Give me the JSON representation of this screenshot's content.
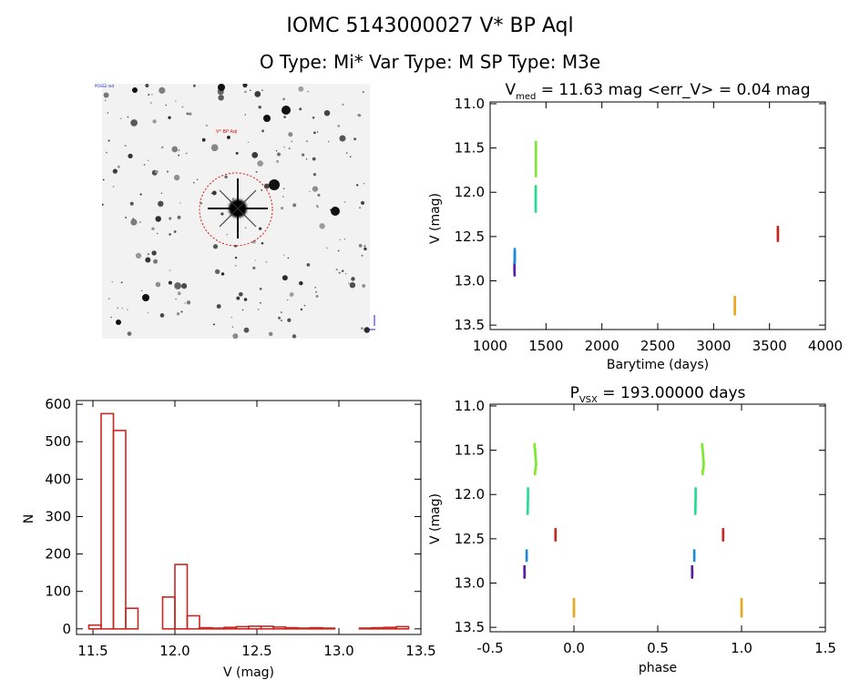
{
  "header": {
    "title": "IOMC 5143000027    V* BP Aql",
    "subtitle": "O Type: Mi*  Var Type: M   SP Type: M3e"
  },
  "image_panel": {
    "star_label": "V* BP Aql",
    "corner_labels": [
      "POSS2 red",
      "N",
      "E"
    ]
  },
  "colors": {
    "purple": "#5a1ea0",
    "blue": "#1c8ad8",
    "teal": "#22dc8c",
    "green": "#7ce82a",
    "orange": "#e8a820",
    "red": "#c82820"
  },
  "chart_data": [
    {
      "id": "lightcurve",
      "type": "scatter",
      "title": "V_med = 11.63 mag <err_V> = 0.04 mag",
      "title_parts": {
        "main": "V",
        "sub": "med",
        "rest": " = 11.63 mag <err_V> = 0.04 mag"
      },
      "xlabel": "Barytime (days)",
      "ylabel": "V (mag)",
      "xlim": [
        1000,
        4000
      ],
      "ylim": [
        13.55,
        10.98
      ],
      "y_inverted": true,
      "xticks": [
        1000,
        1500,
        2000,
        2500,
        3000,
        3500,
        4000
      ],
      "yticks": [
        11.0,
        11.5,
        12.0,
        12.5,
        13.0,
        13.5
      ],
      "series": [
        {
          "color_key": "purple",
          "points": [
            [
              1218,
              12.8
            ],
            [
              1218,
              12.83
            ],
            [
              1218,
              12.86
            ],
            [
              1218,
              12.89
            ],
            [
              1219,
              12.92
            ]
          ]
        },
        {
          "color_key": "blue",
          "points": [
            [
              1220,
              12.66
            ],
            [
              1220,
              12.69
            ],
            [
              1220,
              12.72
            ],
            [
              1221,
              12.75
            ],
            [
              1220,
              12.78
            ]
          ]
        },
        {
          "color_key": "teal",
          "points": [
            [
              1408,
              11.95
            ],
            [
              1408,
              12.0
            ],
            [
              1408,
              12.05
            ],
            [
              1408,
              12.1
            ],
            [
              1408,
              12.15
            ],
            [
              1408,
              12.2
            ]
          ]
        },
        {
          "color_key": "green",
          "points": [
            [
              1410,
              11.45
            ],
            [
              1410,
              11.5
            ],
            [
              1410,
              11.55
            ],
            [
              1410,
              11.6
            ],
            [
              1410,
              11.65
            ],
            [
              1410,
              11.7
            ],
            [
              1410,
              11.75
            ],
            [
              1410,
              11.8
            ]
          ]
        },
        {
          "color_key": "orange",
          "points": [
            [
              3190,
              13.2
            ],
            [
              3190,
              13.24
            ],
            [
              3190,
              13.28
            ],
            [
              3190,
              13.32
            ],
            [
              3190,
              13.36
            ]
          ]
        },
        {
          "color_key": "red",
          "points": [
            [
              3575,
              12.41
            ],
            [
              3575,
              12.44
            ],
            [
              3575,
              12.47
            ],
            [
              3575,
              12.5
            ],
            [
              3575,
              12.53
            ]
          ]
        }
      ]
    },
    {
      "id": "histogram",
      "type": "bar",
      "xlabel": "V (mag)",
      "ylabel": "N",
      "xlim": [
        11.4,
        13.5
      ],
      "ylim": [
        -15,
        610
      ],
      "xticks": [
        11.5,
        12.0,
        12.5,
        13.0,
        13.5
      ],
      "yticks": [
        0,
        100,
        200,
        300,
        400,
        500,
        600
      ],
      "bin_width": 0.075,
      "bin_left_edges": [
        11.475,
        11.55,
        11.625,
        11.7,
        11.775,
        11.85,
        11.925,
        12.0,
        12.075,
        12.15,
        12.225,
        12.3,
        12.375,
        12.45,
        12.525,
        12.6,
        12.675,
        12.75,
        12.825,
        12.9,
        12.975,
        13.05,
        13.125,
        13.2,
        13.275,
        13.35
      ],
      "values": [
        10,
        575,
        530,
        55,
        0,
        0,
        85,
        172,
        35,
        3,
        2,
        4,
        6,
        7,
        7,
        5,
        3,
        2,
        3,
        2,
        0,
        0,
        2,
        3,
        4,
        6
      ]
    },
    {
      "id": "phased",
      "type": "scatter",
      "title": "P_vsx = 193.00000 days",
      "title_parts": {
        "main": "P",
        "sub": "VSX",
        "rest": " = 193.00000 days"
      },
      "xlabel": "phase",
      "ylabel": "V (mag)",
      "xlim": [
        -0.5,
        1.5
      ],
      "ylim": [
        13.55,
        10.98
      ],
      "y_inverted": true,
      "xticks": [
        -0.5,
        0.0,
        0.5,
        1.0,
        1.5
      ],
      "yticks": [
        11.0,
        11.5,
        12.0,
        12.5,
        13.0,
        13.5
      ],
      "series": [
        {
          "color_key": "purple",
          "points": [
            [
              -0.295,
              12.83
            ],
            [
              -0.295,
              12.86
            ],
            [
              -0.294,
              12.89
            ],
            [
              -0.295,
              12.92
            ],
            [
              0.705,
              12.83
            ],
            [
              0.705,
              12.86
            ],
            [
              0.706,
              12.89
            ],
            [
              0.705,
              12.92
            ]
          ]
        },
        {
          "color_key": "blue",
          "points": [
            [
              -0.282,
              12.65
            ],
            [
              -0.282,
              12.69
            ],
            [
              -0.282,
              12.73
            ],
            [
              0.718,
              12.65
            ],
            [
              0.718,
              12.69
            ],
            [
              0.718,
              12.73
            ]
          ]
        },
        {
          "color_key": "teal",
          "points": [
            [
              -0.274,
              11.95
            ],
            [
              -0.274,
              12.0
            ],
            [
              -0.274,
              12.05
            ],
            [
              -0.275,
              12.1
            ],
            [
              -0.275,
              12.15
            ],
            [
              -0.276,
              12.2
            ],
            [
              0.726,
              11.95
            ],
            [
              0.726,
              12.0
            ],
            [
              0.726,
              12.05
            ],
            [
              0.725,
              12.1
            ],
            [
              0.725,
              12.15
            ],
            [
              0.724,
              12.2
            ]
          ]
        },
        {
          "color_key": "green",
          "points": [
            [
              -0.235,
              11.45
            ],
            [
              -0.232,
              11.5
            ],
            [
              -0.23,
              11.55
            ],
            [
              -0.228,
              11.6
            ],
            [
              -0.226,
              11.65
            ],
            [
              -0.228,
              11.7
            ],
            [
              -0.232,
              11.75
            ],
            [
              0.765,
              11.45
            ],
            [
              0.768,
              11.5
            ],
            [
              0.77,
              11.55
            ],
            [
              0.772,
              11.6
            ],
            [
              0.774,
              11.65
            ],
            [
              0.772,
              11.7
            ],
            [
              0.768,
              11.75
            ]
          ]
        },
        {
          "color_key": "orange",
          "points": [
            [
              0.0,
              13.2
            ],
            [
              0.0,
              13.24
            ],
            [
              0.0,
              13.28
            ],
            [
              0.0,
              13.32
            ],
            [
              0.0,
              13.36
            ],
            [
              1.0,
              13.2
            ],
            [
              1.0,
              13.24
            ],
            [
              1.0,
              13.28
            ],
            [
              1.0,
              13.32
            ],
            [
              1.0,
              13.36
            ]
          ]
        },
        {
          "color_key": "red",
          "points": [
            [
              -0.11,
              12.41
            ],
            [
              -0.11,
              12.44
            ],
            [
              -0.11,
              12.47
            ],
            [
              -0.11,
              12.5
            ],
            [
              0.89,
              12.41
            ],
            [
              0.89,
              12.44
            ],
            [
              0.89,
              12.47
            ],
            [
              0.89,
              12.5
            ]
          ]
        }
      ]
    }
  ]
}
